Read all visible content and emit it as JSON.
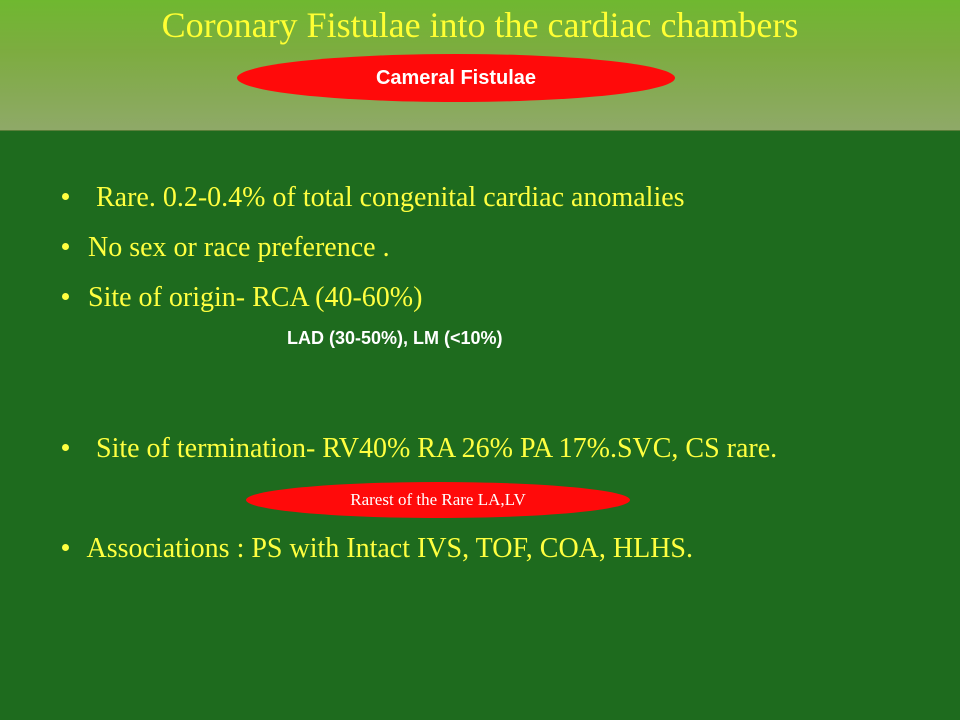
{
  "slide": {
    "title": "Coronary Fistulae into the  cardiac chambers",
    "badge": "Cameral Fistulae",
    "bullets": [
      "Rare. 0.2-0.4% of total congenital cardiac anomalies",
      "No sex or race preference .",
      "Site of origin- RCA (40-60%)",
      "Site of termination- RV40% RA 26% PA 17%.SVC,  CS rare.",
      "Associations : PS with Intact IVS, TOF, COA, HLHS."
    ],
    "origin_sub": "LAD (30-50%), LM (<10%)",
    "termination_note": "Rarest of the Rare LA,LV"
  },
  "colors": {
    "background": "#1e6b1e",
    "title": "#ffff33",
    "bullet_text": "#ffff40",
    "oval": "#ff0a0a"
  }
}
